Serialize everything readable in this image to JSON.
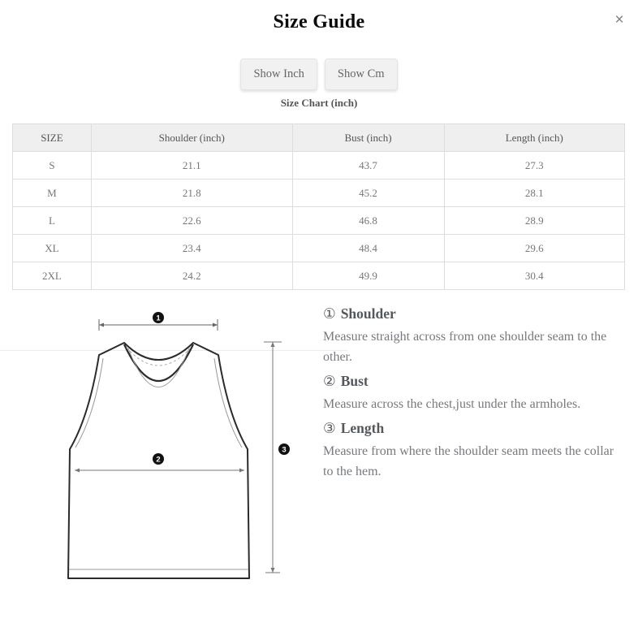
{
  "modal": {
    "title": "Size Guide",
    "close_icon": "×"
  },
  "unit_toggle": {
    "inch_label": "Show Inch",
    "cm_label": "Show Cm"
  },
  "subtitle": "Size Chart (inch)",
  "table": {
    "headers": [
      "SIZE",
      "Shoulder (inch)",
      "Bust (inch)",
      "Length (inch)"
    ],
    "rows": [
      [
        "S",
        "21.1",
        "43.7",
        "27.3"
      ],
      [
        "M",
        "21.8",
        "45.2",
        "28.1"
      ],
      [
        "L",
        "22.6",
        "46.8",
        "28.9"
      ],
      [
        "XL",
        "23.4",
        "48.4",
        "29.6"
      ],
      [
        "2XL",
        "24.2",
        "49.9",
        "30.4"
      ]
    ]
  },
  "diagram": {
    "badges": [
      "1",
      "2",
      "3"
    ]
  },
  "instructions": [
    {
      "num": "①",
      "title": "Shoulder",
      "text": "Measure straight across from one shoulder seam to the other."
    },
    {
      "num": "②",
      "title": "Bust",
      "text": "Measure across the chest,just under the armholes."
    },
    {
      "num": "③",
      "title": "Length",
      "text": "Measure from where the shoulder seam meets the collar to the hem."
    }
  ],
  "colors": {
    "table_header_bg": "#efefef",
    "table_border": "#dddddd",
    "heading_text": "#54585d",
    "body_text": "#76797d",
    "badge_fill": "#111111",
    "outline": "#2b2b2b"
  }
}
